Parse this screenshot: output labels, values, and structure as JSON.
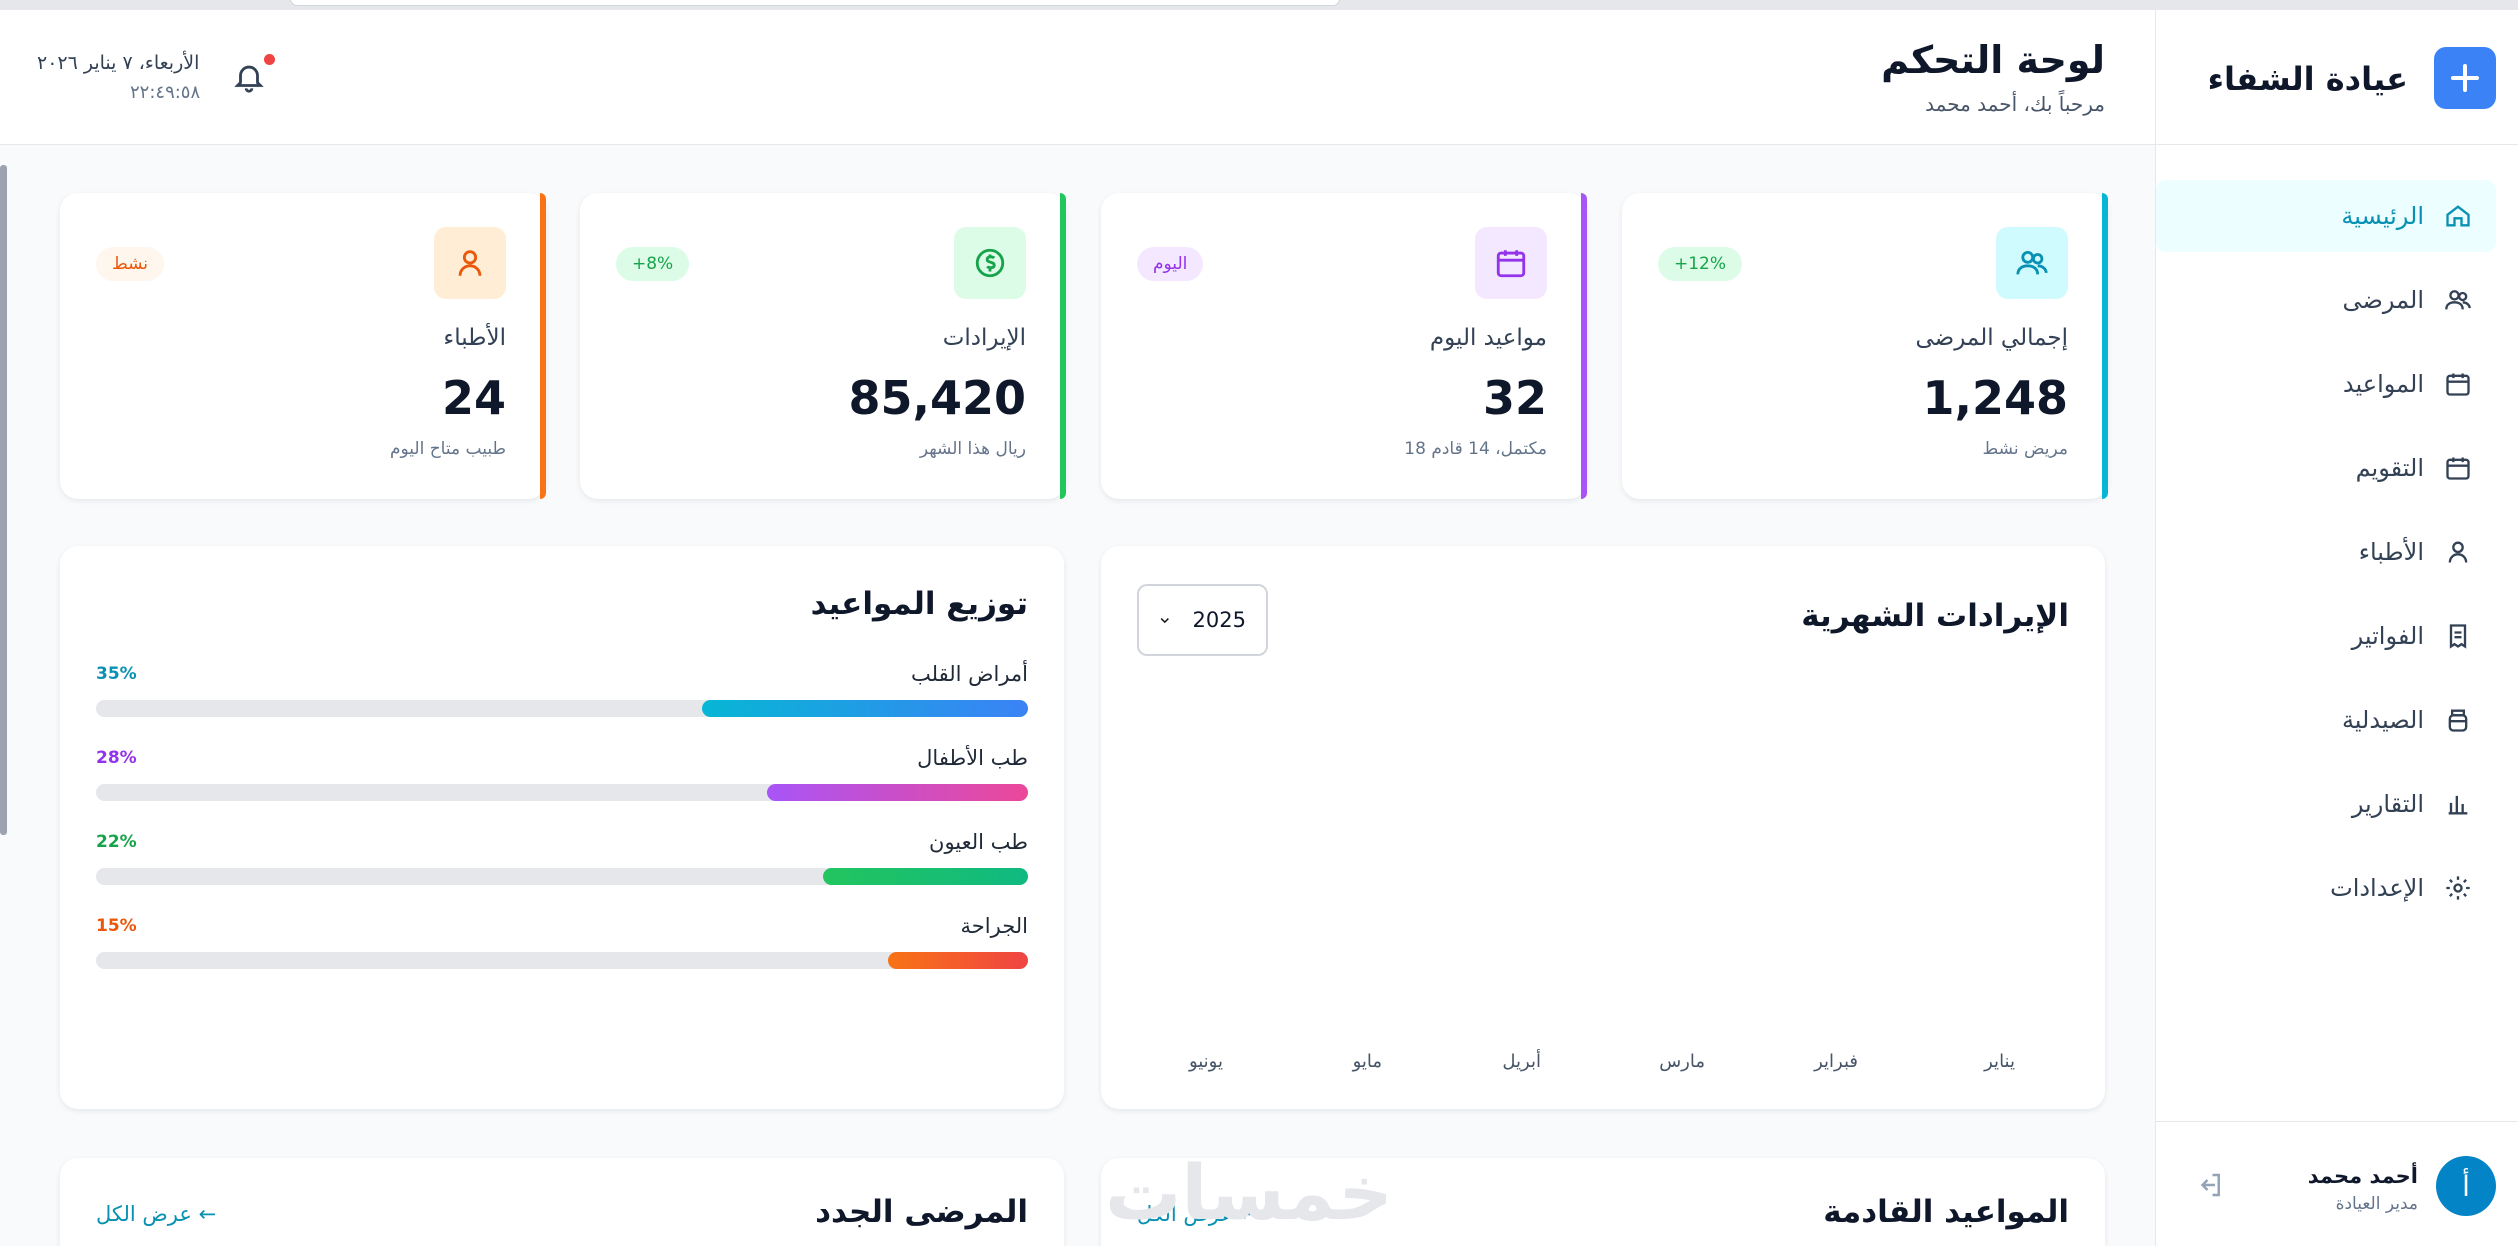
{
  "brand": {
    "name": "عيادة الشفاء"
  },
  "nav": [
    {
      "label": "الرئيسية",
      "icon": "home-icon",
      "active": true
    },
    {
      "label": "المرضى",
      "icon": "users-icon"
    },
    {
      "label": "المواعيد",
      "icon": "calendar-icon"
    },
    {
      "label": "التقويم",
      "icon": "calendar-icon"
    },
    {
      "label": "الأطباء",
      "icon": "user-icon"
    },
    {
      "label": "الفواتير",
      "icon": "invoice-icon"
    },
    {
      "label": "الصيدلية",
      "icon": "pharmacy-icon"
    },
    {
      "label": "التقارير",
      "icon": "chart-icon"
    },
    {
      "label": "الإعدادات",
      "icon": "gear-icon"
    }
  ],
  "user": {
    "initial": "أ",
    "name": "أحمد محمد",
    "role": "مدير العيادة"
  },
  "header": {
    "title": "لوحة التحكم",
    "subtitle": "مرحباً بك، أحمد محمد",
    "date": "الأربعاء، ٧ يناير ٢٠٢٦",
    "time": "٢٢:٤٩:٥٨"
  },
  "stats": [
    {
      "label": "إجمالي المرضى",
      "value": "1,248",
      "foot": "مريض نشط",
      "badge": "+12%",
      "color": "#06b6d4",
      "icon": "users-icon"
    },
    {
      "label": "مواعيد اليوم",
      "value": "32",
      "foot": "18 مكتمل، 14 قادم",
      "badge": "اليوم",
      "color": "#a855f7",
      "icon": "calendar-icon"
    },
    {
      "label": "الإيرادات",
      "value": "85,420",
      "foot": "ريال هذا الشهر",
      "badge": "+8%",
      "color": "#22c55e",
      "icon": "dollar-icon"
    },
    {
      "label": "الأطباء",
      "value": "24",
      "foot": "طبيب متاح اليوم",
      "badge": "نشط",
      "color": "#f97316",
      "icon": "user-icon"
    }
  ],
  "revenue": {
    "title": "الإيرادات الشهرية",
    "year": "2025",
    "months": [
      "يناير",
      "فبراير",
      "مارس",
      "أبريل",
      "مايو",
      "يونيو"
    ]
  },
  "distribution": {
    "title": "توزيع المواعيد",
    "items": [
      {
        "name": "أمراض القلب",
        "pct_label": "35%",
        "fraction": 0.35,
        "color": "#0891b2"
      },
      {
        "name": "طب الأطفال",
        "pct_label": "28%",
        "fraction": 0.28,
        "color": "#9333ea"
      },
      {
        "name": "طب العيون",
        "pct_label": "22%",
        "fraction": 0.22,
        "color": "#16a34a"
      },
      {
        "name": "الجراحة",
        "pct_label": "15%",
        "fraction": 0.15,
        "color": "#ea580c"
      }
    ]
  },
  "upcoming": {
    "title": "المواعيد القادمة",
    "view_all": "عرض الكل ←"
  },
  "new_patients": {
    "title": "المرضى الجدد",
    "view_all": "عرض الكل ←"
  },
  "watermark": "خمسات"
}
